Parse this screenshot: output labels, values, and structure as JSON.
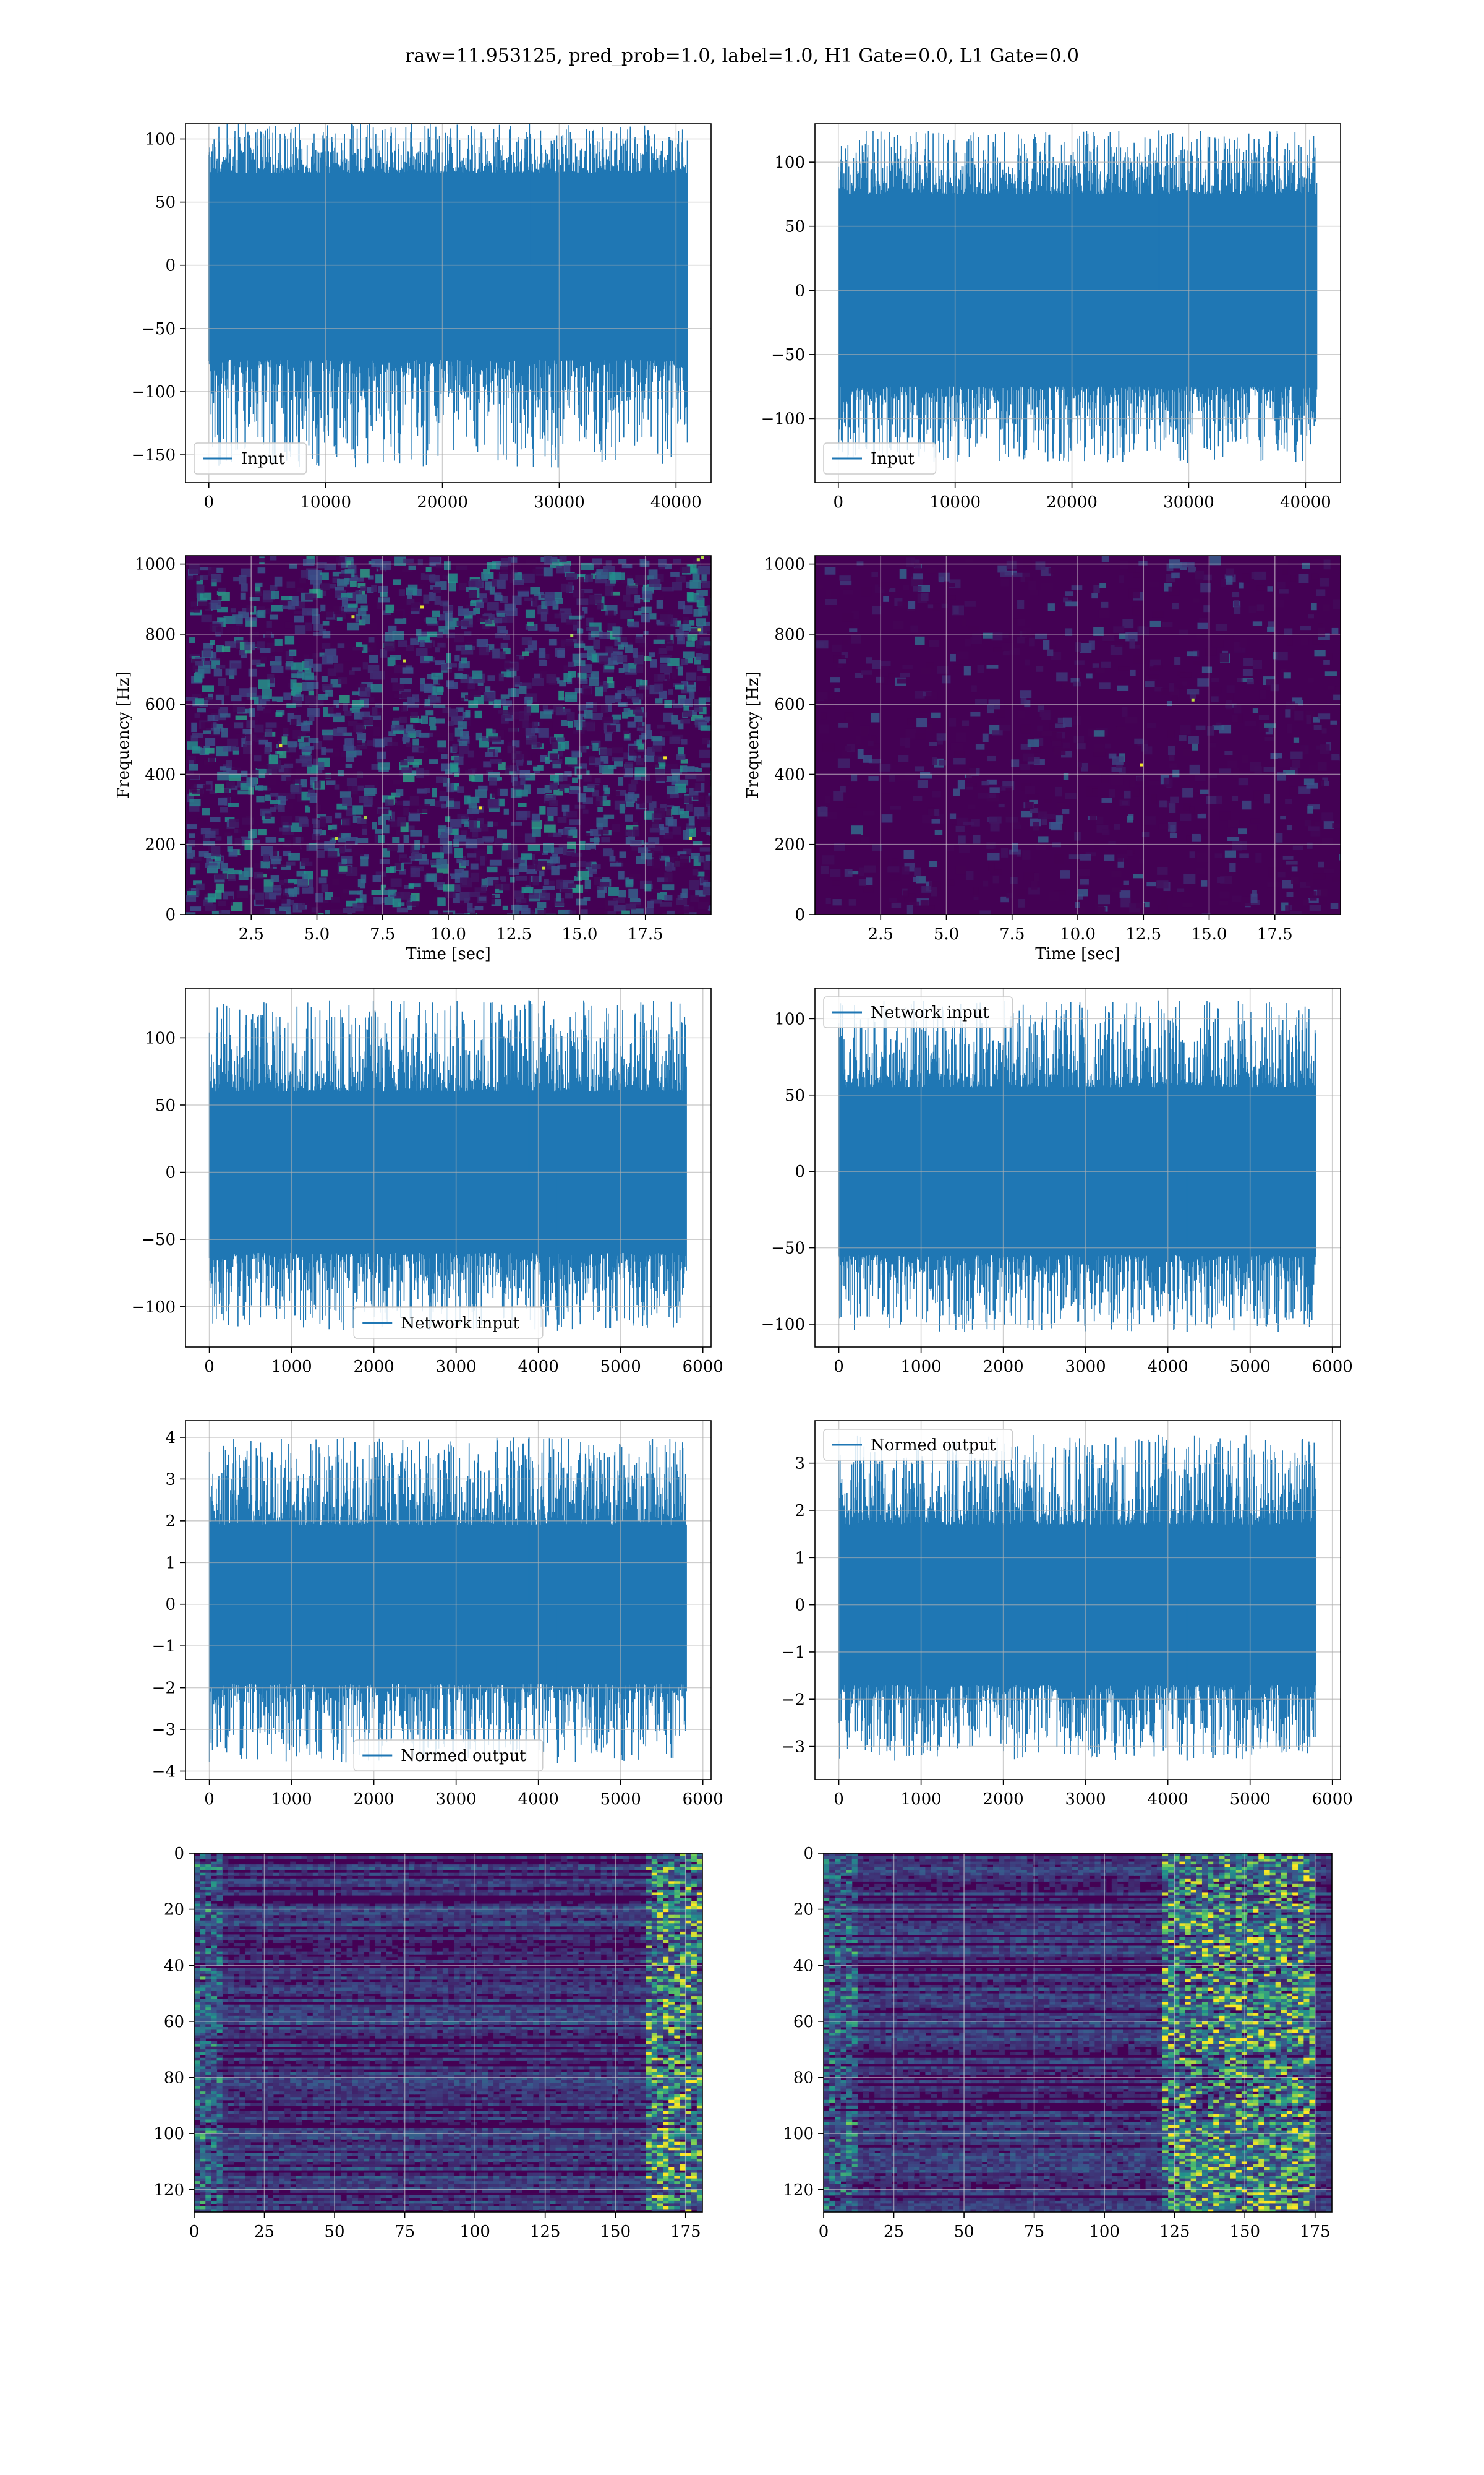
{
  "figure": {
    "suptitle": "raw=11.953125, pred_prob=1.0, label=1.0, H1 Gate=0.0, L1 Gate=0.0",
    "colors": {
      "line": "#1f77b4",
      "grid": "#b0b0b0",
      "viridis_low": "#440154",
      "viridis_mid": "#21918c",
      "viridis_high": "#fde725"
    }
  },
  "chart_data": [
    {
      "id": "input_h1",
      "type": "line",
      "title": "",
      "xlabel": "",
      "ylabel": "",
      "xlim": [
        -2000,
        43000
      ],
      "ylim": [
        -172,
        112
      ],
      "xticks": [
        0,
        10000,
        20000,
        30000,
        40000
      ],
      "xtick_labels": [
        "0",
        "10000",
        "20000",
        "30000",
        "40000"
      ],
      "yticks": [
        -150,
        -100,
        -50,
        0,
        50,
        100
      ],
      "ytick_labels": [
        "−150",
        "−100",
        "−50",
        "0",
        "50",
        "100"
      ],
      "grid": true,
      "legend": "lower-left",
      "series": [
        {
          "name": "Input",
          "x_start": 0,
          "x_end": 40960,
          "band": [
            -75,
            73
          ],
          "peaks": [
            -160,
            112
          ]
        }
      ]
    },
    {
      "id": "input_l1",
      "type": "line",
      "title": "",
      "xlabel": "",
      "ylabel": "",
      "xlim": [
        -2000,
        43000
      ],
      "ylim": [
        -150,
        130
      ],
      "xticks": [
        0,
        10000,
        20000,
        30000,
        40000
      ],
      "xtick_labels": [
        "0",
        "10000",
        "20000",
        "30000",
        "40000"
      ],
      "yticks": [
        -100,
        -50,
        0,
        50,
        100
      ],
      "ytick_labels": [
        "−100",
        "−50",
        "0",
        "50",
        "100"
      ],
      "grid": true,
      "legend": "lower-left",
      "series": [
        {
          "name": "Input",
          "x_start": 0,
          "x_end": 40960,
          "band": [
            -75,
            75
          ],
          "peaks": [
            -135,
            125
          ]
        }
      ]
    },
    {
      "id": "spec_h1",
      "type": "heatmap",
      "title": "",
      "xlabel": "Time [sec]",
      "ylabel": "Frequency [Hz]",
      "xlim": [
        0,
        20
      ],
      "ylim": [
        0,
        1024
      ],
      "xticks": [
        2.5,
        5.0,
        7.5,
        10.0,
        12.5,
        15.0,
        17.5
      ],
      "xtick_labels": [
        "2.5",
        "5.0",
        "7.5",
        "10.0",
        "12.5",
        "15.0",
        "17.5"
      ],
      "yticks": [
        0,
        200,
        400,
        600,
        800,
        1000
      ],
      "ytick_labels": [
        "0",
        "200",
        "400",
        "600",
        "800",
        "1000"
      ],
      "grid": true,
      "colormap": "viridis",
      "intensity": "medium"
    },
    {
      "id": "spec_l1",
      "type": "heatmap",
      "title": "",
      "xlabel": "Time [sec]",
      "ylabel": "Frequency [Hz]",
      "xlim": [
        0,
        20
      ],
      "ylim": [
        0,
        1024
      ],
      "xticks": [
        2.5,
        5.0,
        7.5,
        10.0,
        12.5,
        15.0,
        17.5
      ],
      "xtick_labels": [
        "2.5",
        "5.0",
        "7.5",
        "10.0",
        "12.5",
        "15.0",
        "17.5"
      ],
      "yticks": [
        0,
        200,
        400,
        600,
        800,
        1000
      ],
      "ytick_labels": [
        "0",
        "200",
        "400",
        "600",
        "800",
        "1000"
      ],
      "grid": true,
      "colormap": "viridis",
      "intensity": "low"
    },
    {
      "id": "net_h1",
      "type": "line",
      "title": "",
      "xlabel": "",
      "ylabel": "",
      "xlim": [
        -290,
        6100
      ],
      "ylim": [
        -130,
        137
      ],
      "xticks": [
        0,
        1000,
        2000,
        3000,
        4000,
        5000,
        6000
      ],
      "xtick_labels": [
        "0",
        "1000",
        "2000",
        "3000",
        "4000",
        "5000",
        "6000"
      ],
      "yticks": [
        -100,
        -50,
        0,
        50,
        100
      ],
      "ytick_labels": [
        "−100",
        "−50",
        "0",
        "50",
        "100"
      ],
      "grid": true,
      "legend": "lower-center",
      "series": [
        {
          "name": "Network input",
          "x_start": 0,
          "x_end": 5800,
          "band": [
            -60,
            60
          ],
          "peaks": [
            -118,
            128
          ]
        }
      ]
    },
    {
      "id": "net_l1",
      "type": "line",
      "title": "",
      "xlabel": "",
      "ylabel": "",
      "xlim": [
        -290,
        6100
      ],
      "ylim": [
        -115,
        120
      ],
      "xticks": [
        0,
        1000,
        2000,
        3000,
        4000,
        5000,
        6000
      ],
      "xtick_labels": [
        "0",
        "1000",
        "2000",
        "3000",
        "4000",
        "5000",
        "6000"
      ],
      "yticks": [
        -100,
        -50,
        0,
        50,
        100
      ],
      "ytick_labels": [
        "−100",
        "−50",
        "0",
        "50",
        "100"
      ],
      "grid": true,
      "legend": "upper-left",
      "series": [
        {
          "name": "Network input",
          "x_start": 0,
          "x_end": 5800,
          "band": [
            -55,
            55
          ],
          "peaks": [
            -105,
            112
          ]
        }
      ]
    },
    {
      "id": "out_h1",
      "type": "line",
      "title": "",
      "xlabel": "",
      "ylabel": "",
      "xlim": [
        -290,
        6100
      ],
      "ylim": [
        -4.2,
        4.4
      ],
      "xticks": [
        0,
        1000,
        2000,
        3000,
        4000,
        5000,
        6000
      ],
      "xtick_labels": [
        "0",
        "1000",
        "2000",
        "3000",
        "4000",
        "5000",
        "6000"
      ],
      "yticks": [
        -4,
        -3,
        -2,
        -1,
        0,
        1,
        2,
        3,
        4
      ],
      "ytick_labels": [
        "−4",
        "−3",
        "−2",
        "−1",
        "0",
        "1",
        "2",
        "3",
        "4"
      ],
      "grid": true,
      "legend": "lower-center",
      "series": [
        {
          "name": "Normed output",
          "x_start": 0,
          "x_end": 5800,
          "band": [
            -1.9,
            1.9
          ],
          "peaks": [
            -3.8,
            4.0
          ]
        }
      ]
    },
    {
      "id": "out_l1",
      "type": "line",
      "title": "",
      "xlabel": "",
      "ylabel": "",
      "xlim": [
        -290,
        6100
      ],
      "ylim": [
        -3.7,
        3.9
      ],
      "xticks": [
        0,
        1000,
        2000,
        3000,
        4000,
        5000,
        6000
      ],
      "xtick_labels": [
        "0",
        "1000",
        "2000",
        "3000",
        "4000",
        "5000",
        "6000"
      ],
      "yticks": [
        -3,
        -2,
        -1,
        0,
        1,
        2,
        3
      ],
      "ytick_labels": [
        "−3",
        "−2",
        "−1",
        "0",
        "1",
        "2",
        "3"
      ],
      "grid": true,
      "legend": "upper-left",
      "series": [
        {
          "name": "Normed output",
          "x_start": 0,
          "x_end": 5800,
          "band": [
            -1.7,
            1.7
          ],
          "peaks": [
            -3.3,
            3.6
          ]
        }
      ]
    },
    {
      "id": "feat_h1",
      "type": "heatmap",
      "title": "",
      "xlabel": "",
      "ylabel": "",
      "xlim": [
        0,
        181
      ],
      "ylim": [
        128,
        0
      ],
      "xticks": [
        0,
        25,
        50,
        75,
        100,
        125,
        150,
        175
      ],
      "xtick_labels": [
        "0",
        "25",
        "50",
        "75",
        "100",
        "125",
        "150",
        "175"
      ],
      "yticks": [
        0,
        20,
        40,
        60,
        80,
        100,
        120
      ],
      "ytick_labels": [
        "0",
        "20",
        "40",
        "60",
        "80",
        "100",
        "120"
      ],
      "grid": true,
      "colormap": "viridis",
      "hot_columns": [
        160,
        181
      ],
      "hot_columns_left": [
        0,
        10
      ]
    },
    {
      "id": "feat_l1",
      "type": "heatmap",
      "title": "",
      "xlabel": "",
      "ylabel": "",
      "xlim": [
        0,
        181
      ],
      "ylim": [
        128,
        0
      ],
      "xticks": [
        0,
        25,
        50,
        75,
        100,
        125,
        150,
        175
      ],
      "xtick_labels": [
        "0",
        "25",
        "50",
        "75",
        "100",
        "125",
        "150",
        "175"
      ],
      "yticks": [
        0,
        20,
        40,
        60,
        80,
        100,
        120
      ],
      "ytick_labels": [
        "0",
        "20",
        "40",
        "60",
        "80",
        "100",
        "120"
      ],
      "grid": true,
      "colormap": "viridis",
      "hot_columns": [
        120,
        175
      ],
      "hot_columns_left": [
        0,
        12
      ]
    }
  ]
}
